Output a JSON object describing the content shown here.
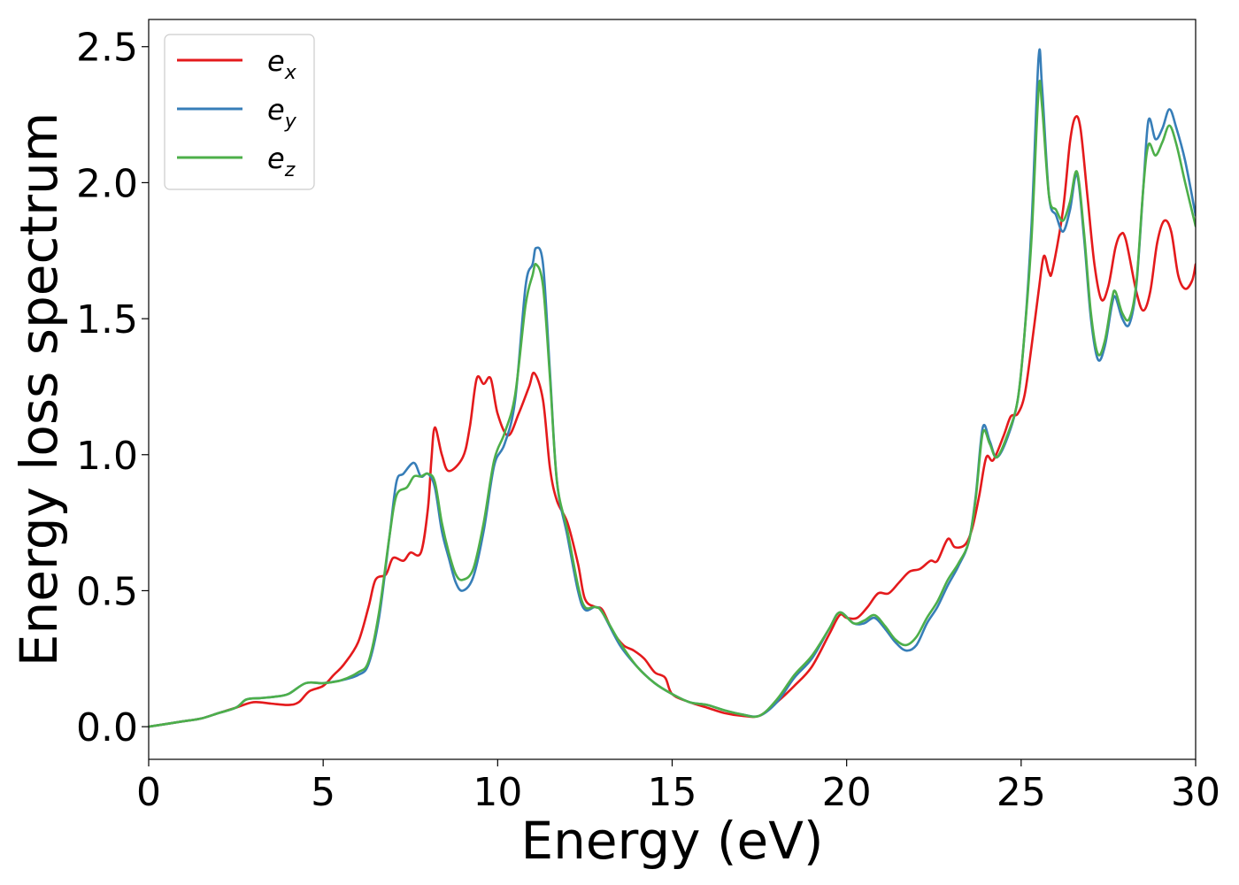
{
  "chart_data": {
    "type": "line",
    "title": "",
    "xlabel": "Energy (eV)",
    "ylabel": "Energy loss spectrum",
    "xlim": [
      0,
      30
    ],
    "ylim": [
      -0.12,
      2.6
    ],
    "xticks": [
      0,
      5,
      10,
      15,
      20,
      25,
      30
    ],
    "xtick_labels": [
      "0",
      "5",
      "10",
      "15",
      "20",
      "25",
      "30"
    ],
    "yticks": [
      0.0,
      0.5,
      1.0,
      1.5,
      2.0,
      2.5
    ],
    "ytick_labels": [
      "0.0",
      "0.5",
      "1.0",
      "1.5",
      "2.0",
      "2.5"
    ],
    "grid": false,
    "legend_position": "top-left",
    "series": [
      {
        "name": "e_x",
        "label_base": "e",
        "label_sub": "x",
        "color": "#e41a1c",
        "points": [
          [
            0,
            0
          ],
          [
            0.5,
            0.01
          ],
          [
            1,
            0.02
          ],
          [
            1.5,
            0.03
          ],
          [
            2,
            0.05
          ],
          [
            2.5,
            0.07
          ],
          [
            3,
            0.09
          ],
          [
            3.5,
            0.085
          ],
          [
            4,
            0.08
          ],
          [
            4.3,
            0.09
          ],
          [
            4.6,
            0.13
          ],
          [
            5,
            0.15
          ],
          [
            5.3,
            0.19
          ],
          [
            5.6,
            0.23
          ],
          [
            6,
            0.31
          ],
          [
            6.3,
            0.44
          ],
          [
            6.5,
            0.54
          ],
          [
            6.8,
            0.56
          ],
          [
            7,
            0.62
          ],
          [
            7.3,
            0.61
          ],
          [
            7.5,
            0.64
          ],
          [
            7.8,
            0.64
          ],
          [
            8,
            0.8
          ],
          [
            8.1,
            0.98
          ],
          [
            8.2,
            1.1
          ],
          [
            8.4,
            1.0
          ],
          [
            8.6,
            0.94
          ],
          [
            9,
            0.99
          ],
          [
            9.2,
            1.1
          ],
          [
            9.4,
            1.28
          ],
          [
            9.6,
            1.26
          ],
          [
            9.8,
            1.28
          ],
          [
            10,
            1.15
          ],
          [
            10.3,
            1.07
          ],
          [
            10.6,
            1.15
          ],
          [
            10.9,
            1.25
          ],
          [
            11.05,
            1.3
          ],
          [
            11.3,
            1.2
          ],
          [
            11.5,
            0.95
          ],
          [
            11.7,
            0.83
          ],
          [
            12,
            0.75
          ],
          [
            12.3,
            0.6
          ],
          [
            12.5,
            0.47
          ],
          [
            12.8,
            0.44
          ],
          [
            13,
            0.43
          ],
          [
            13.3,
            0.35
          ],
          [
            13.6,
            0.3
          ],
          [
            13.9,
            0.28
          ],
          [
            14.2,
            0.25
          ],
          [
            14.5,
            0.2
          ],
          [
            14.8,
            0.18
          ],
          [
            15,
            0.12
          ],
          [
            15.5,
            0.09
          ],
          [
            16,
            0.07
          ],
          [
            16.5,
            0.05
          ],
          [
            17,
            0.04
          ],
          [
            17.5,
            0.04
          ],
          [
            18,
            0.09
          ],
          [
            18.5,
            0.15
          ],
          [
            19,
            0.22
          ],
          [
            19.5,
            0.34
          ],
          [
            19.8,
            0.41
          ],
          [
            20,
            0.4
          ],
          [
            20.3,
            0.4
          ],
          [
            20.6,
            0.44
          ],
          [
            20.9,
            0.49
          ],
          [
            21.2,
            0.49
          ],
          [
            21.5,
            0.53
          ],
          [
            21.8,
            0.57
          ],
          [
            22.1,
            0.58
          ],
          [
            22.4,
            0.61
          ],
          [
            22.6,
            0.61
          ],
          [
            22.9,
            0.69
          ],
          [
            23.1,
            0.66
          ],
          [
            23.4,
            0.67
          ],
          [
            23.6,
            0.73
          ],
          [
            23.8,
            0.85
          ],
          [
            24,
            0.99
          ],
          [
            24.2,
            0.98
          ],
          [
            24.5,
            1.07
          ],
          [
            24.7,
            1.14
          ],
          [
            24.9,
            1.15
          ],
          [
            25.1,
            1.22
          ],
          [
            25.3,
            1.4
          ],
          [
            25.5,
            1.6
          ],
          [
            25.65,
            1.73
          ],
          [
            25.8,
            1.67
          ],
          [
            25.9,
            1.68
          ],
          [
            26.2,
            1.9
          ],
          [
            26.4,
            2.15
          ],
          [
            26.55,
            2.24
          ],
          [
            26.7,
            2.2
          ],
          [
            26.9,
            1.95
          ],
          [
            27.1,
            1.7
          ],
          [
            27.3,
            1.57
          ],
          [
            27.5,
            1.62
          ],
          [
            27.7,
            1.76
          ],
          [
            27.85,
            1.81
          ],
          [
            28,
            1.79
          ],
          [
            28.3,
            1.6
          ],
          [
            28.5,
            1.53
          ],
          [
            28.7,
            1.6
          ],
          [
            28.9,
            1.78
          ],
          [
            29.1,
            1.86
          ],
          [
            29.3,
            1.82
          ],
          [
            29.5,
            1.66
          ],
          [
            29.7,
            1.61
          ],
          [
            29.9,
            1.64
          ],
          [
            30,
            1.7
          ]
        ]
      },
      {
        "name": "e_y",
        "label_base": "e",
        "label_sub": "y",
        "color": "#377eb8",
        "points": [
          [
            0,
            0
          ],
          [
            0.5,
            0.01
          ],
          [
            1,
            0.02
          ],
          [
            1.5,
            0.03
          ],
          [
            2,
            0.05
          ],
          [
            2.5,
            0.07
          ],
          [
            2.8,
            0.1
          ],
          [
            3.2,
            0.105
          ],
          [
            3.6,
            0.11
          ],
          [
            4,
            0.12
          ],
          [
            4.5,
            0.16
          ],
          [
            5,
            0.16
          ],
          [
            5.5,
            0.17
          ],
          [
            6,
            0.19
          ],
          [
            6.3,
            0.23
          ],
          [
            6.6,
            0.4
          ],
          [
            6.9,
            0.7
          ],
          [
            7.1,
            0.9
          ],
          [
            7.3,
            0.93
          ],
          [
            7.6,
            0.97
          ],
          [
            7.8,
            0.92
          ],
          [
            8,
            0.93
          ],
          [
            8.2,
            0.88
          ],
          [
            8.4,
            0.72
          ],
          [
            8.6,
            0.62
          ],
          [
            8.8,
            0.53
          ],
          [
            9,
            0.5
          ],
          [
            9.3,
            0.55
          ],
          [
            9.6,
            0.72
          ],
          [
            9.9,
            0.96
          ],
          [
            10.2,
            1.04
          ],
          [
            10.5,
            1.2
          ],
          [
            10.8,
            1.62
          ],
          [
            11,
            1.7
          ],
          [
            11.1,
            1.76
          ],
          [
            11.3,
            1.7
          ],
          [
            11.5,
            1.3
          ],
          [
            11.7,
            0.9
          ],
          [
            12,
            0.7
          ],
          [
            12.3,
            0.5
          ],
          [
            12.5,
            0.43
          ],
          [
            12.8,
            0.44
          ],
          [
            13,
            0.42
          ],
          [
            13.5,
            0.3
          ],
          [
            14,
            0.22
          ],
          [
            14.5,
            0.16
          ],
          [
            15,
            0.12
          ],
          [
            15.5,
            0.09
          ],
          [
            16,
            0.08
          ],
          [
            16.5,
            0.06
          ],
          [
            17,
            0.045
          ],
          [
            17.5,
            0.04
          ],
          [
            18,
            0.09
          ],
          [
            18.5,
            0.18
          ],
          [
            19,
            0.25
          ],
          [
            19.5,
            0.36
          ],
          [
            19.8,
            0.42
          ],
          [
            20.2,
            0.38
          ],
          [
            20.5,
            0.38
          ],
          [
            20.8,
            0.4
          ],
          [
            21.1,
            0.36
          ],
          [
            21.4,
            0.31
          ],
          [
            21.7,
            0.28
          ],
          [
            22,
            0.3
          ],
          [
            22.3,
            0.38
          ],
          [
            22.6,
            0.44
          ],
          [
            22.9,
            0.52
          ],
          [
            23.2,
            0.59
          ],
          [
            23.5,
            0.68
          ],
          [
            23.7,
            0.85
          ],
          [
            23.9,
            1.1
          ],
          [
            24.1,
            1.05
          ],
          [
            24.3,
            0.99
          ],
          [
            24.6,
            1.06
          ],
          [
            24.9,
            1.2
          ],
          [
            25.1,
            1.45
          ],
          [
            25.3,
            1.85
          ],
          [
            25.5,
            2.46
          ],
          [
            25.6,
            2.35
          ],
          [
            25.8,
            1.95
          ],
          [
            26,
            1.88
          ],
          [
            26.2,
            1.82
          ],
          [
            26.4,
            1.9
          ],
          [
            26.6,
            2.03
          ],
          [
            26.8,
            1.8
          ],
          [
            27,
            1.5
          ],
          [
            27.2,
            1.35
          ],
          [
            27.4,
            1.4
          ],
          [
            27.6,
            1.55
          ],
          [
            27.7,
            1.58
          ],
          [
            27.9,
            1.5
          ],
          [
            28.1,
            1.48
          ],
          [
            28.3,
            1.62
          ],
          [
            28.5,
            1.98
          ],
          [
            28.65,
            2.23
          ],
          [
            28.85,
            2.16
          ],
          [
            29.05,
            2.2
          ],
          [
            29.25,
            2.27
          ],
          [
            29.45,
            2.2
          ],
          [
            29.7,
            2.08
          ],
          [
            30,
            1.88
          ]
        ]
      },
      {
        "name": "e_z",
        "label_base": "e",
        "label_sub": "z",
        "color": "#4daf4a",
        "points": [
          [
            0,
            0
          ],
          [
            0.5,
            0.01
          ],
          [
            1,
            0.02
          ],
          [
            1.5,
            0.03
          ],
          [
            2,
            0.05
          ],
          [
            2.5,
            0.07
          ],
          [
            2.8,
            0.1
          ],
          [
            3.2,
            0.105
          ],
          [
            3.6,
            0.11
          ],
          [
            4,
            0.12
          ],
          [
            4.5,
            0.16
          ],
          [
            5,
            0.16
          ],
          [
            5.5,
            0.17
          ],
          [
            6,
            0.2
          ],
          [
            6.3,
            0.24
          ],
          [
            6.6,
            0.42
          ],
          [
            6.9,
            0.7
          ],
          [
            7.1,
            0.85
          ],
          [
            7.4,
            0.88
          ],
          [
            7.6,
            0.92
          ],
          [
            7.8,
            0.92
          ],
          [
            8,
            0.93
          ],
          [
            8.2,
            0.9
          ],
          [
            8.4,
            0.75
          ],
          [
            8.6,
            0.64
          ],
          [
            8.8,
            0.56
          ],
          [
            9,
            0.54
          ],
          [
            9.3,
            0.58
          ],
          [
            9.6,
            0.75
          ],
          [
            9.9,
            0.98
          ],
          [
            10.2,
            1.08
          ],
          [
            10.5,
            1.22
          ],
          [
            10.8,
            1.55
          ],
          [
            11,
            1.66
          ],
          [
            11.1,
            1.7
          ],
          [
            11.3,
            1.62
          ],
          [
            11.5,
            1.28
          ],
          [
            11.7,
            0.9
          ],
          [
            12,
            0.72
          ],
          [
            12.3,
            0.52
          ],
          [
            12.5,
            0.44
          ],
          [
            12.8,
            0.44
          ],
          [
            13,
            0.42
          ],
          [
            13.5,
            0.31
          ],
          [
            14,
            0.22
          ],
          [
            14.5,
            0.16
          ],
          [
            15,
            0.12
          ],
          [
            15.5,
            0.09
          ],
          [
            16,
            0.08
          ],
          [
            16.5,
            0.06
          ],
          [
            17,
            0.045
          ],
          [
            17.5,
            0.04
          ],
          [
            18,
            0.1
          ],
          [
            18.5,
            0.19
          ],
          [
            19,
            0.26
          ],
          [
            19.5,
            0.36
          ],
          [
            19.8,
            0.42
          ],
          [
            20.2,
            0.38
          ],
          [
            20.5,
            0.39
          ],
          [
            20.8,
            0.41
          ],
          [
            21.1,
            0.37
          ],
          [
            21.4,
            0.32
          ],
          [
            21.7,
            0.3
          ],
          [
            22,
            0.33
          ],
          [
            22.3,
            0.4
          ],
          [
            22.6,
            0.46
          ],
          [
            22.9,
            0.54
          ],
          [
            23.2,
            0.6
          ],
          [
            23.5,
            0.68
          ],
          [
            23.7,
            0.84
          ],
          [
            23.9,
            1.08
          ],
          [
            24.1,
            1.04
          ],
          [
            24.3,
            0.99
          ],
          [
            24.6,
            1.07
          ],
          [
            24.9,
            1.2
          ],
          [
            25.1,
            1.45
          ],
          [
            25.3,
            1.8
          ],
          [
            25.5,
            2.34
          ],
          [
            25.6,
            2.28
          ],
          [
            25.8,
            1.95
          ],
          [
            26,
            1.9
          ],
          [
            26.2,
            1.86
          ],
          [
            26.4,
            1.93
          ],
          [
            26.6,
            2.04
          ],
          [
            26.8,
            1.82
          ],
          [
            27,
            1.52
          ],
          [
            27.2,
            1.37
          ],
          [
            27.4,
            1.42
          ],
          [
            27.6,
            1.57
          ],
          [
            27.7,
            1.6
          ],
          [
            27.9,
            1.52
          ],
          [
            28.1,
            1.5
          ],
          [
            28.3,
            1.63
          ],
          [
            28.5,
            1.98
          ],
          [
            28.65,
            2.14
          ],
          [
            28.85,
            2.1
          ],
          [
            29.05,
            2.15
          ],
          [
            29.25,
            2.21
          ],
          [
            29.45,
            2.14
          ],
          [
            29.7,
            2.0
          ],
          [
            30,
            1.84
          ]
        ]
      }
    ]
  }
}
